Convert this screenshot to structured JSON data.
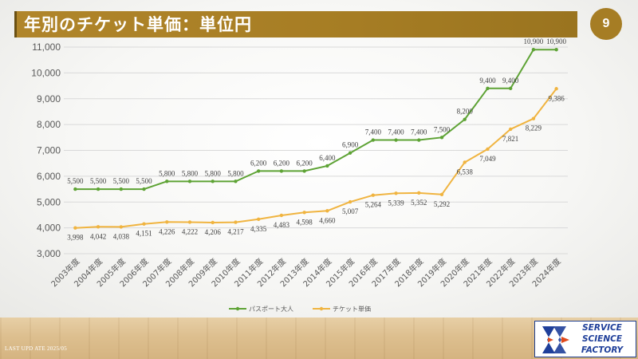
{
  "title": "年別のチケット単価：単位円",
  "page_number": "9",
  "footer": {
    "update_text": "LAST UPD ATE 2025/05"
  },
  "logo": {
    "line1": "SERVICE",
    "line2": "SCIENCE",
    "line3": "FACTORY"
  },
  "colors": {
    "title_bar": "#a67d24",
    "series_passport": "#5ea335",
    "series_ticket": "#f0b440"
  },
  "chart_data": {
    "type": "line",
    "title": "",
    "xlabel": "",
    "ylabel": "",
    "ylim": [
      3000,
      11000
    ],
    "yticks": [
      3000,
      4000,
      5000,
      6000,
      7000,
      8000,
      9000,
      10000,
      11000
    ],
    "ytick_labels": [
      "3,000",
      "4,000",
      "5,000",
      "6,000",
      "7,000",
      "8,000",
      "9,000",
      "10,000",
      "11,000"
    ],
    "grid": true,
    "legend_position": "bottom",
    "categories": [
      "2003年度",
      "2004年度",
      "2005年度",
      "2006年度",
      "2007年度",
      "2008年度",
      "2009年度",
      "2010年度",
      "2011年度",
      "2012年度",
      "2013年度",
      "2014年度",
      "2015年度",
      "2016年度",
      "2017年度",
      "2018年度",
      "2019年度",
      "2020年度",
      "2021年度",
      "2022年度",
      "2023年度",
      "2024年度"
    ],
    "series": [
      {
        "name": "パスポート大人",
        "color": "#5ea335",
        "values": [
          5500,
          5500,
          5500,
          5500,
          5800,
          5800,
          5800,
          5800,
          6200,
          6200,
          6200,
          6400,
          6900,
          7400,
          7400,
          7400,
          7500,
          8200,
          9400,
          9400,
          10900,
          10900
        ],
        "labels": [
          "5,500",
          "5,500",
          "5,500",
          "5,500",
          "5,800",
          "5,800",
          "5,800",
          "5,800",
          "6,200",
          "6,200",
          "6,200",
          "6,400",
          "6,900",
          "7,400",
          "7,400",
          "7,400",
          "7,500",
          "8,200",
          "9,400",
          "9,400",
          "10,900",
          "10,900"
        ]
      },
      {
        "name": "チケット単価",
        "color": "#f0b440",
        "values": [
          3998,
          4042,
          4038,
          4151,
          4226,
          4222,
          4206,
          4217,
          4335,
          4483,
          4598,
          4660,
          5007,
          5264,
          5339,
          5352,
          5292,
          6538,
          7049,
          7821,
          8229,
          9386
        ],
        "labels": [
          "3,998",
          "4,042",
          "4,038",
          "4,151",
          "4,226",
          "4,222",
          "4,206",
          "4,217",
          "4,335",
          "4,483",
          "4,598",
          "4,660",
          "5,007",
          "5,264",
          "5,339",
          "5,352",
          "5,292",
          "6,538",
          "7,049",
          "7,821",
          "8,229",
          "9,386"
        ]
      }
    ]
  }
}
